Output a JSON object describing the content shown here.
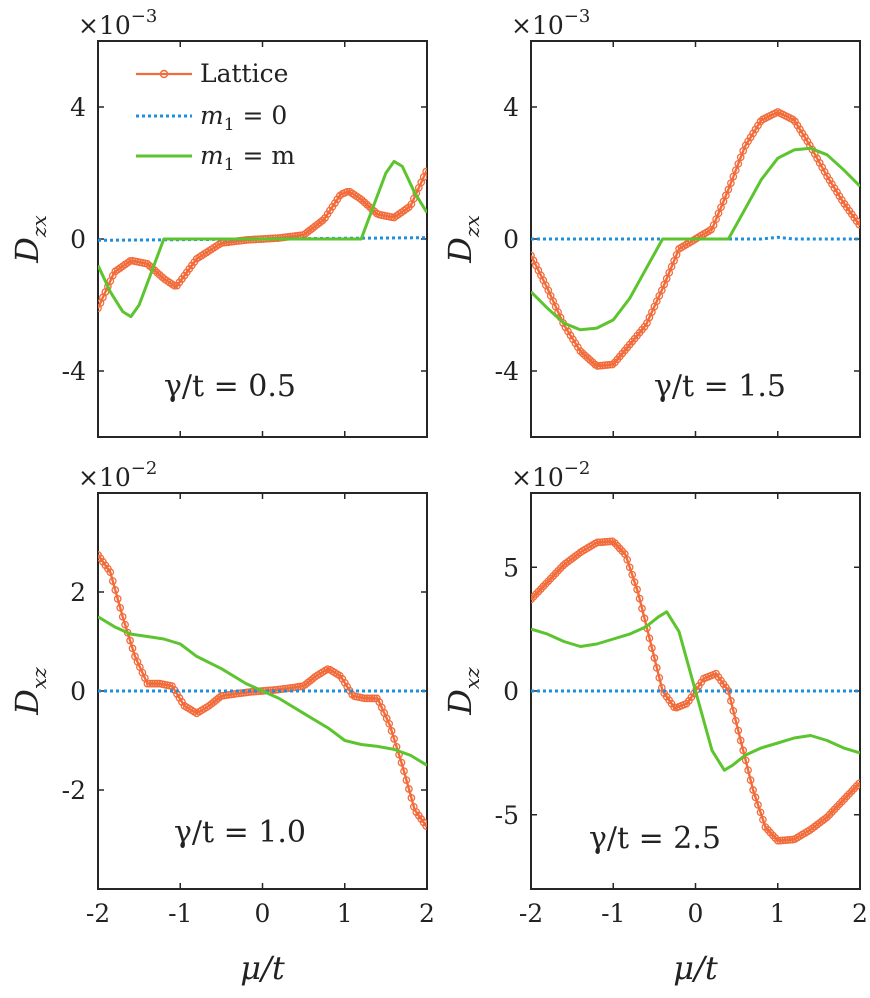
{
  "chart_data": [
    {
      "type": "line",
      "panel": "top-left",
      "ylabel_main": "D",
      "ylabel_sub": "zx",
      "xlabel_main": "μ",
      "xlabel_rest": "/t",
      "show_xticklabels": false,
      "show_xlabel": false,
      "xlim": [
        -2,
        2
      ],
      "ylim": [
        -6,
        6
      ],
      "yticks": [
        -4,
        0,
        4
      ],
      "ytick_labels": [
        "-4",
        "0",
        "4"
      ],
      "xticks": [
        -2,
        -1,
        0,
        1,
        2
      ],
      "xtick_labels": [
        "-2",
        "-1",
        "0",
        "1",
        "2"
      ],
      "scale_base": "×10",
      "scale_exp": "−3",
      "annotation": "γ/t = 0.5",
      "legend": {
        "placement": "top-left",
        "entries": [
          {
            "label": "Lattice"
          },
          {
            "label_main": "m",
            "label_sub": "1",
            "label_rest": " = 0"
          },
          {
            "label_main": "m",
            "label_sub": "1",
            "label_rest": " = m"
          }
        ]
      },
      "series": [
        {
          "name": "Lattice",
          "color": "#F26B3A",
          "style": "line-circles",
          "x": [
            -2.0,
            -1.8,
            -1.6,
            -1.4,
            -1.2,
            -1.05,
            -0.8,
            -0.5,
            -0.2,
            0.0,
            0.2,
            0.5,
            0.75,
            0.95,
            1.05,
            1.2,
            1.4,
            1.6,
            1.8,
            2.0
          ],
          "y": [
            -2.1,
            -1.0,
            -0.65,
            -0.75,
            -1.2,
            -1.45,
            -0.6,
            -0.12,
            -0.03,
            0.0,
            0.03,
            0.12,
            0.6,
            1.35,
            1.45,
            1.2,
            0.75,
            0.65,
            1.0,
            2.1
          ]
        },
        {
          "name": "m1 = 0",
          "color": "#1E8FE0",
          "style": "dotted",
          "x": [
            -2,
            -1,
            0,
            1,
            2
          ],
          "y": [
            -0.04,
            -0.02,
            0.0,
            0.02,
            0.04
          ]
        },
        {
          "name": "m1 = m",
          "color": "#5CC42E",
          "style": "solid",
          "x": [
            -2.0,
            -1.85,
            -1.7,
            -1.6,
            -1.5,
            -1.35,
            -1.2,
            -1.0,
            -0.8,
            -0.5,
            0.0,
            0.5,
            0.8,
            1.0,
            1.2,
            1.35,
            1.5,
            1.6,
            1.7,
            1.85,
            2.0
          ],
          "y": [
            -0.8,
            -1.6,
            -2.2,
            -2.35,
            -2.0,
            -1.0,
            0.0,
            0.0,
            0.0,
            0.0,
            0.0,
            0.0,
            0.0,
            0.0,
            0.0,
            1.0,
            2.0,
            2.35,
            2.2,
            1.4,
            0.8
          ]
        }
      ]
    },
    {
      "type": "line",
      "panel": "top-right",
      "ylabel_main": "D",
      "ylabel_sub": "zx",
      "xlabel_main": "μ",
      "xlabel_rest": "/t",
      "show_xticklabels": false,
      "show_xlabel": false,
      "xlim": [
        -2,
        2
      ],
      "ylim": [
        -6,
        6
      ],
      "yticks": [
        -4,
        0,
        4
      ],
      "ytick_labels": [
        "-4",
        "0",
        "4"
      ],
      "xticks": [
        -2,
        -1,
        0,
        1,
        2
      ],
      "xtick_labels": [
        "-2",
        "-1",
        "0",
        "1",
        "2"
      ],
      "scale_base": "×10",
      "scale_exp": "−3",
      "annotation": "γ/t = 1.5",
      "series": [
        {
          "name": "Lattice",
          "color": "#F26B3A",
          "style": "line-circles",
          "x": [
            -2.0,
            -1.8,
            -1.6,
            -1.4,
            -1.2,
            -1.0,
            -0.8,
            -0.6,
            -0.4,
            -0.2,
            0.0,
            0.2,
            0.4,
            0.6,
            0.8,
            1.0,
            1.2,
            1.4,
            1.6,
            1.8,
            2.0
          ],
          "y": [
            -0.5,
            -1.5,
            -2.6,
            -3.4,
            -3.85,
            -3.8,
            -3.2,
            -2.6,
            -1.5,
            -0.3,
            0.0,
            0.3,
            1.5,
            2.8,
            3.6,
            3.85,
            3.6,
            2.8,
            1.9,
            1.1,
            0.4
          ]
        },
        {
          "name": "m1 = 0",
          "color": "#1E8FE0",
          "style": "dotted",
          "x": [
            -2,
            -1,
            0,
            0.8,
            1.0,
            1.2,
            2
          ],
          "y": [
            0.0,
            0.0,
            0.0,
            0.0,
            0.05,
            0.0,
            0.0
          ]
        },
        {
          "name": "m1 = m",
          "color": "#5CC42E",
          "style": "solid",
          "x": [
            -2.0,
            -1.8,
            -1.6,
            -1.4,
            -1.2,
            -1.0,
            -0.8,
            -0.6,
            -0.4,
            0.0,
            0.4,
            0.6,
            0.8,
            1.0,
            1.2,
            1.4,
            1.6,
            1.8,
            2.0
          ],
          "y": [
            -1.6,
            -2.1,
            -2.55,
            -2.75,
            -2.7,
            -2.45,
            -1.8,
            -0.9,
            0.0,
            0.0,
            0.0,
            0.9,
            1.8,
            2.45,
            2.7,
            2.75,
            2.55,
            2.1,
            1.6
          ]
        }
      ]
    },
    {
      "type": "line",
      "panel": "bottom-left",
      "ylabel_main": "D",
      "ylabel_sub": "xz",
      "xlabel_main": "μ",
      "xlabel_rest": "/t",
      "show_xticklabels": true,
      "show_xlabel": true,
      "xlim": [
        -2,
        2
      ],
      "ylim": [
        -4,
        4
      ],
      "yticks": [
        -2,
        0,
        2
      ],
      "ytick_labels": [
        "-2",
        "0",
        "2"
      ],
      "xticks": [
        -2,
        -1,
        0,
        1,
        2
      ],
      "xtick_labels": [
        "-2",
        "-1",
        "0",
        "1",
        "2"
      ],
      "scale_base": "×10",
      "scale_exp": "−2",
      "annotation": "γ/t = 1.0",
      "series": [
        {
          "name": "Lattice",
          "color": "#F26B3A",
          "style": "line-circles",
          "x": [
            -2.0,
            -1.85,
            -1.7,
            -1.55,
            -1.4,
            -1.25,
            -1.1,
            -0.95,
            -0.8,
            -0.65,
            -0.5,
            -0.3,
            -0.15,
            0.0,
            0.15,
            0.3,
            0.5,
            0.65,
            0.8,
            0.95,
            1.1,
            1.25,
            1.4,
            1.55,
            1.7,
            1.85,
            2.0
          ],
          "y": [
            2.75,
            2.4,
            1.5,
            0.7,
            0.15,
            0.15,
            0.1,
            -0.3,
            -0.45,
            -0.3,
            -0.1,
            -0.05,
            -0.02,
            0.0,
            0.02,
            0.05,
            0.1,
            0.3,
            0.45,
            0.3,
            -0.1,
            -0.15,
            -0.15,
            -0.7,
            -1.5,
            -2.4,
            -2.75
          ]
        },
        {
          "name": "m1 = 0",
          "color": "#1E8FE0",
          "style": "dotted",
          "x": [
            -2,
            -1,
            0,
            1,
            2
          ],
          "y": [
            0.0,
            0.0,
            0.0,
            0.0,
            0.0
          ]
        },
        {
          "name": "m1 = m",
          "color": "#5CC42E",
          "style": "solid",
          "x": [
            -2.0,
            -1.8,
            -1.6,
            -1.4,
            -1.2,
            -1.0,
            -0.8,
            -0.5,
            -0.2,
            0.0,
            0.2,
            0.5,
            0.8,
            1.0,
            1.2,
            1.4,
            1.6,
            1.8,
            2.0
          ],
          "y": [
            1.5,
            1.3,
            1.15,
            1.1,
            1.05,
            0.95,
            0.7,
            0.45,
            0.15,
            0.0,
            -0.15,
            -0.45,
            -0.75,
            -1.0,
            -1.08,
            -1.12,
            -1.18,
            -1.3,
            -1.5
          ]
        }
      ]
    },
    {
      "type": "line",
      "panel": "bottom-right",
      "ylabel_main": "D",
      "ylabel_sub": "xz",
      "xlabel_main": "μ",
      "xlabel_rest": "/t",
      "show_xticklabels": true,
      "show_xlabel": true,
      "xlim": [
        -2,
        2
      ],
      "ylim": [
        -8,
        8
      ],
      "yticks": [
        -5,
        0,
        5
      ],
      "ytick_labels": [
        "-5",
        "0",
        "5"
      ],
      "xticks": [
        -2,
        -1,
        0,
        1,
        2
      ],
      "xtick_labels": [
        "-2",
        "-1",
        "0",
        "1",
        "2"
      ],
      "scale_base": "×10",
      "scale_exp": "−2",
      "annotation": "γ/t = 2.5",
      "series": [
        {
          "name": "Lattice",
          "color": "#F26B3A",
          "style": "line-circles",
          "x": [
            -2.0,
            -1.8,
            -1.6,
            -1.4,
            -1.2,
            -1.0,
            -0.85,
            -0.7,
            -0.55,
            -0.4,
            -0.25,
            -0.1,
            0.0,
            0.1,
            0.25,
            0.4,
            0.55,
            0.7,
            0.85,
            1.0,
            1.2,
            1.4,
            1.6,
            1.8,
            2.0
          ],
          "y": [
            3.7,
            4.4,
            5.1,
            5.6,
            6.0,
            6.05,
            5.5,
            4.0,
            2.0,
            0.0,
            -0.7,
            -0.5,
            0.0,
            0.5,
            0.7,
            0.0,
            -2.0,
            -4.0,
            -5.5,
            -6.05,
            -6.0,
            -5.6,
            -5.1,
            -4.4,
            -3.7
          ]
        },
        {
          "name": "m1 = 0",
          "color": "#1E8FE0",
          "style": "dotted",
          "x": [
            -2,
            -1,
            0,
            1,
            2
          ],
          "y": [
            0.0,
            0.0,
            0.0,
            0.0,
            0.0
          ]
        },
        {
          "name": "m1 = m",
          "color": "#5CC42E",
          "style": "solid",
          "x": [
            -2.0,
            -1.8,
            -1.6,
            -1.4,
            -1.2,
            -1.0,
            -0.8,
            -0.6,
            -0.45,
            -0.35,
            -0.2,
            0.0,
            0.2,
            0.35,
            0.45,
            0.6,
            0.8,
            1.0,
            1.2,
            1.4,
            1.6,
            1.8,
            2.0
          ],
          "y": [
            2.5,
            2.3,
            2.0,
            1.8,
            1.9,
            2.1,
            2.3,
            2.6,
            3.0,
            3.2,
            2.4,
            0.0,
            -2.4,
            -3.2,
            -3.0,
            -2.6,
            -2.3,
            -2.1,
            -1.9,
            -1.8,
            -2.0,
            -2.3,
            -2.5
          ]
        }
      ]
    }
  ]
}
